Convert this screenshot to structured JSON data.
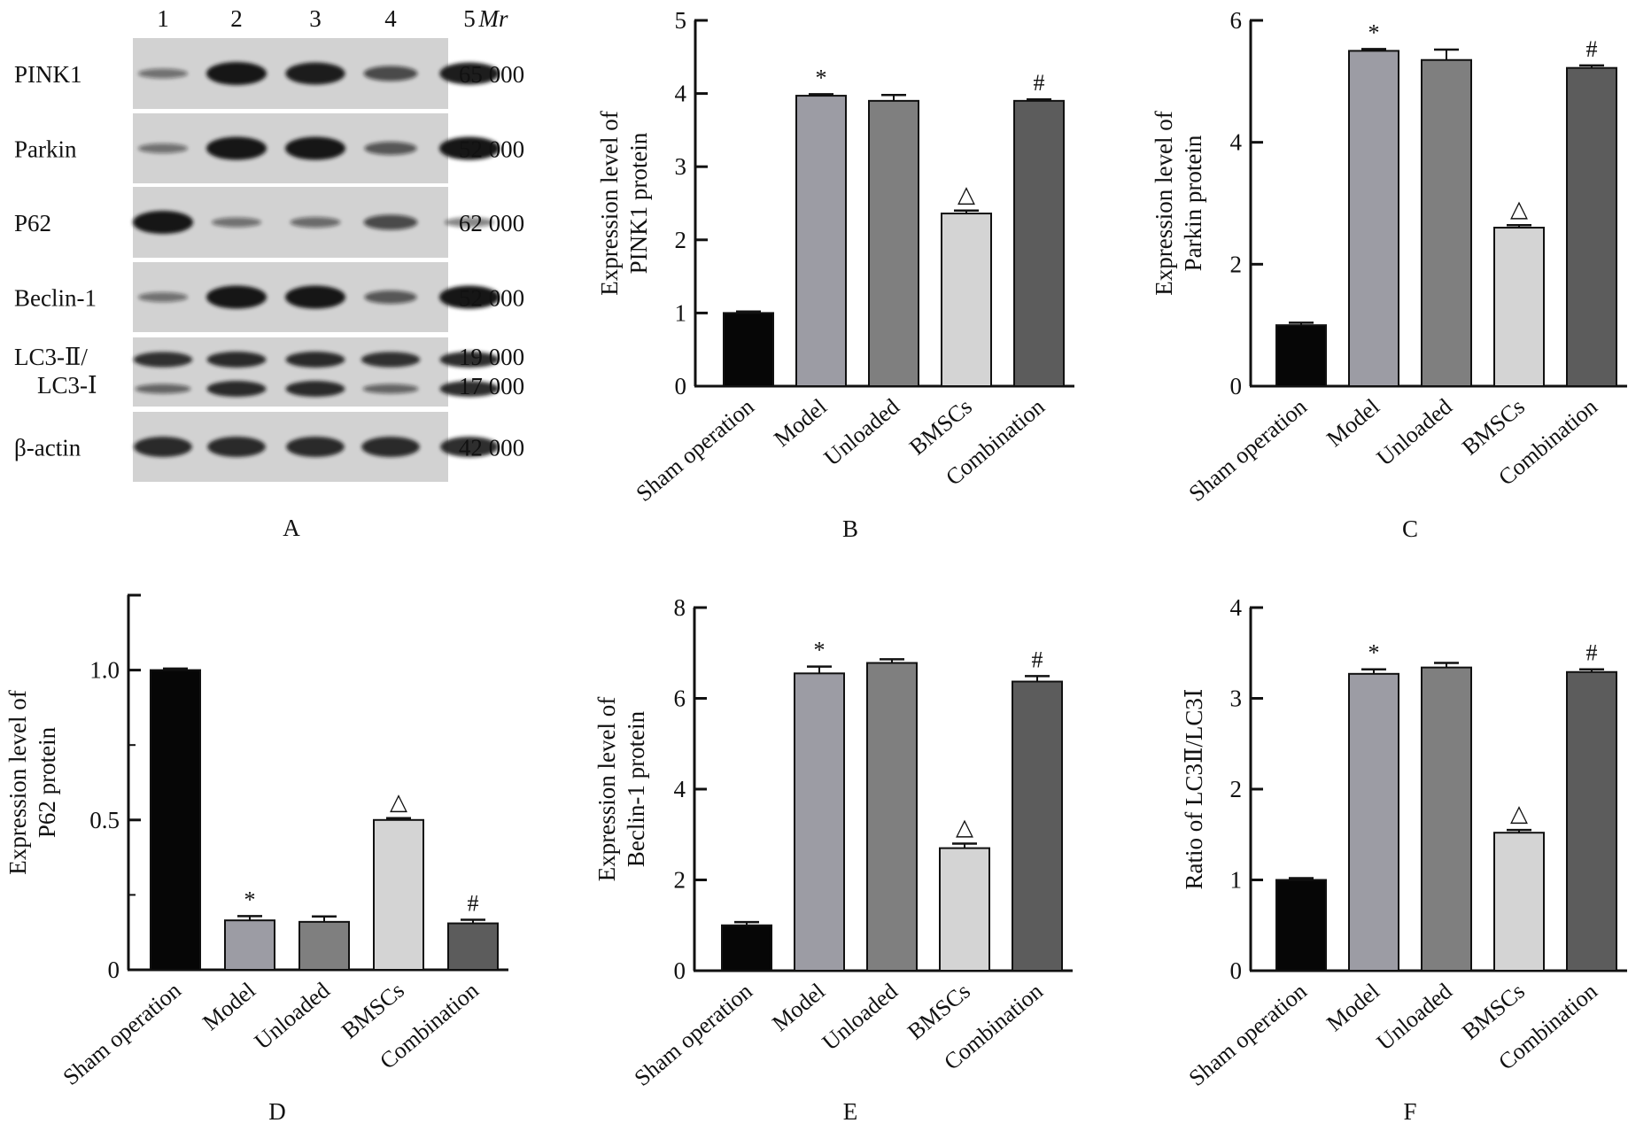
{
  "blot": {
    "panel_letter": "A",
    "lanes": [
      "1",
      "2",
      "3",
      "4",
      "5"
    ],
    "mr_header": "Mr",
    "rows": [
      {
        "label": "PINK1",
        "mw": "65 000",
        "intensity": [
          0.25,
          1.0,
          0.95,
          0.55,
          0.95
        ]
      },
      {
        "label": "Parkin",
        "mw": "52 000",
        "intensity": [
          0.25,
          1.0,
          1.0,
          0.45,
          1.0
        ]
      },
      {
        "label": "P62",
        "mw": "62 000",
        "intensity": [
          1.0,
          0.25,
          0.3,
          0.55,
          0.25
        ]
      },
      {
        "label": "Beclin-1",
        "mw": "52 000",
        "intensity": [
          0.25,
          1.0,
          1.0,
          0.45,
          1.0
        ]
      },
      {
        "label": "LC3-Ⅱ/",
        "label2": "LC3-Ⅰ",
        "mw": "19 000",
        "mw2": "17 000",
        "intensity": [
          0.8,
          0.85,
          0.85,
          0.8,
          0.85
        ],
        "intensity2": [
          0.35,
          0.85,
          0.85,
          0.35,
          0.85
        ]
      },
      {
        "label": "β-actin",
        "mw": "42 000",
        "intensity": [
          0.85,
          0.85,
          0.85,
          0.85,
          0.85
        ]
      }
    ]
  },
  "colors": {
    "sham": "#060606",
    "model": "#9c9ca4",
    "unloaded": "#7f7f7f",
    "bmscs": "#d4d4d4",
    "combination": "#5c5c5c"
  },
  "chart_data": [
    {
      "panel_letter": "B",
      "type": "bar",
      "categories": [
        "Sham operation",
        "Model",
        "Unloaded",
        "BMSCs",
        "Combination"
      ],
      "values": [
        1.0,
        3.97,
        3.9,
        2.36,
        3.9
      ],
      "errors": [
        0.02,
        0.02,
        0.08,
        0.04,
        0.02
      ],
      "annotations": [
        "",
        "*",
        "",
        "△",
        "#"
      ],
      "ylabel": [
        "Expression level of",
        "PINK1 protein"
      ],
      "ylim": [
        0,
        5
      ],
      "yticks": [
        "0",
        "1",
        "2",
        "3",
        "4",
        "5"
      ],
      "minor_ticks": false
    },
    {
      "panel_letter": "C",
      "type": "bar",
      "categories": [
        "Sham operation",
        "Model",
        "Unloaded",
        "BMSCs",
        "Combination"
      ],
      "values": [
        1.0,
        5.5,
        5.35,
        2.6,
        5.22
      ],
      "errors": [
        0.04,
        0.03,
        0.17,
        0.04,
        0.04
      ],
      "annotations": [
        "",
        "*",
        "",
        "△",
        "#"
      ],
      "ylabel": [
        "Expression level of",
        "Parkin protein"
      ],
      "ylim": [
        0,
        6
      ],
      "yticks": [
        "0",
        "2",
        "4",
        "6"
      ],
      "minor_ticks": false
    },
    {
      "panel_letter": "D",
      "type": "bar",
      "categories": [
        "Sham operation",
        "Model",
        "Unloaded",
        "BMSCs",
        "Combination"
      ],
      "values": [
        1.0,
        0.165,
        0.16,
        0.5,
        0.155
      ],
      "errors": [
        0.005,
        0.014,
        0.018,
        0.006,
        0.012
      ],
      "annotations": [
        "",
        "*",
        "",
        "△",
        "#"
      ],
      "ylabel": [
        "Expression level of",
        "P62 protein"
      ],
      "ylim": [
        0,
        1.25
      ],
      "yticks": [
        "0",
        "0.5",
        "1.0"
      ],
      "ytick_values": [
        0,
        0.5,
        1.0
      ],
      "minor_ticks": true
    },
    {
      "panel_letter": "E",
      "type": "bar",
      "categories": [
        "Sham operation",
        "Model",
        "Unloaded",
        "BMSCs",
        "Combination"
      ],
      "values": [
        1.0,
        6.55,
        6.78,
        2.7,
        6.37
      ],
      "errors": [
        0.07,
        0.15,
        0.08,
        0.1,
        0.12
      ],
      "annotations": [
        "",
        "*",
        "",
        "△",
        "#"
      ],
      "ylabel": [
        "Expression level of",
        "Beclin-1 protein"
      ],
      "ylim": [
        0,
        8
      ],
      "yticks": [
        "0",
        "2",
        "4",
        "6",
        "8"
      ],
      "minor_ticks": false
    },
    {
      "panel_letter": "F",
      "type": "bar",
      "categories": [
        "Sham operation",
        "Model",
        "Unloaded",
        "BMSCs",
        "Combination"
      ],
      "values": [
        1.0,
        3.27,
        3.34,
        1.52,
        3.29
      ],
      "errors": [
        0.02,
        0.05,
        0.05,
        0.03,
        0.03
      ],
      "annotations": [
        "",
        "*",
        "",
        "△",
        "#"
      ],
      "ylabel": [
        "Ratio of LC3Ⅱ/LC3Ⅰ"
      ],
      "ylim": [
        0,
        4
      ],
      "yticks": [
        "0",
        "1",
        "2",
        "3",
        "4"
      ],
      "minor_ticks": false
    }
  ]
}
